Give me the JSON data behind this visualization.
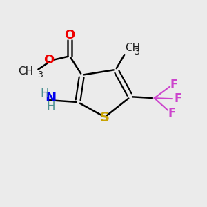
{
  "background_color": "#ebebeb",
  "atom_colors": {
    "C": "#1a1a1a",
    "S": "#c8a200",
    "N": "#0000ee",
    "O": "#ee0000",
    "F": "#cc44cc",
    "H": "#4a9090"
  },
  "font_size": 12
}
